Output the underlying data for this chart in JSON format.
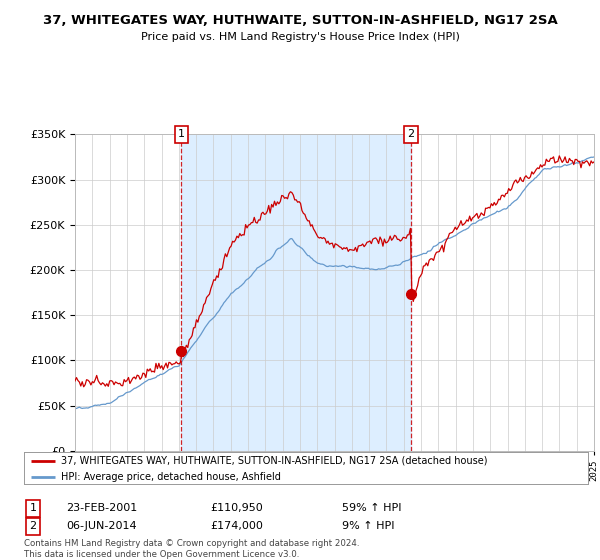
{
  "title": "37, WHITEGATES WAY, HUTHWAITE, SUTTON-IN-ASHFIELD, NG17 2SA",
  "subtitle": "Price paid vs. HM Land Registry's House Price Index (HPI)",
  "legend_label_red": "37, WHITEGATES WAY, HUTHWAITE, SUTTON-IN-ASHFIELD, NG17 2SA (detached house)",
  "legend_label_blue": "HPI: Average price, detached house, Ashfield",
  "sale1_label": "1",
  "sale1_date": "23-FEB-2001",
  "sale1_price": "£110,950",
  "sale1_hpi": "59% ↑ HPI",
  "sale2_label": "2",
  "sale2_date": "06-JUN-2014",
  "sale2_price": "£174,000",
  "sale2_hpi": "9% ↑ HPI",
  "footnote": "Contains HM Land Registry data © Crown copyright and database right 2024.\nThis data is licensed under the Open Government Licence v3.0.",
  "ylim": [
    0,
    350000
  ],
  "yticks": [
    0,
    50000,
    100000,
    150000,
    200000,
    250000,
    300000,
    350000
  ],
  "background_color": "#ffffff",
  "grid_color": "#cccccc",
  "red_color": "#cc0000",
  "blue_color": "#6699cc",
  "shade_color": "#ddeeff",
  "marker1_x": 2001.15,
  "marker1_y": 110950,
  "marker2_x": 2014.43,
  "marker2_y": 174000,
  "xmin": 1995,
  "xmax": 2025
}
